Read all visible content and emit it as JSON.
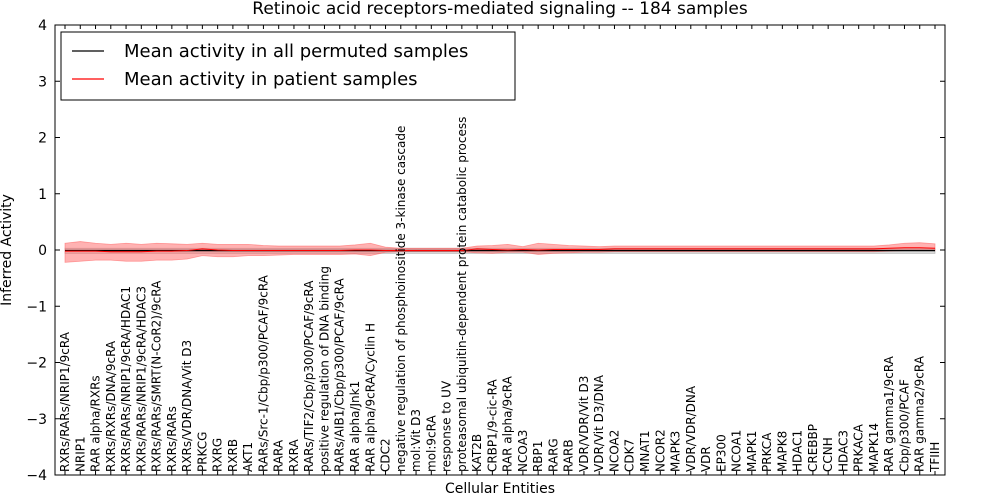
{
  "chart_data": {
    "type": "line",
    "title": "Retinoic acid receptors-mediated signaling -- 184 samples",
    "xlabel": "Cellular Entities",
    "ylabel": "Inferred Activity",
    "ylim": [
      -4,
      4
    ],
    "yticks": [
      -4,
      -3,
      -2,
      -1,
      0,
      1,
      2,
      3,
      4
    ],
    "ytick_labels": [
      "−4",
      "−3",
      "−2",
      "−1",
      "0",
      "1",
      "2",
      "3",
      "4"
    ],
    "grid": false,
    "legend_position": "top-left",
    "categories": [
      "RXRs/RARs/NRIP1/9cRA",
      "NRIP1",
      "RAR alpha/RXRs",
      "RXRs/RXRs/DNA/9cRA",
      "RXRs/RARs/NRIP1/9cRA/HDAC1",
      "RXRs/RARs/NRIP1/9cRA/HDAC3",
      "RXRs/RARs/SMRT(N-CoR2)/9cRA",
      "RXRs/RARs",
      "RXRs/VDR/DNA/Vit D3",
      "PRKCG",
      "RXRG",
      "RXRB",
      "AKT1",
      "RARs/Src-1/Cbp/p300/PCAF/9cRA",
      "RARA",
      "RXRA",
      "RARs/TIF2/Cbp/p300/PCAF/9cRA",
      "positive regulation of DNA binding",
      "RARs/AIB1/Cbp/p300/PCAF/9cRA",
      "RAR alpha/Jnk1",
      "RAR alpha/9cRA/Cyclin H",
      "CDC2",
      "negative regulation of phosphoinositide 3-kinase cascade",
      "mol:Vit D3",
      "mol:9cRA",
      "response to UV",
      "proteasomal ubiquitin-dependent protein catabolic process",
      "KAT2B",
      "CRBP1/9-cic-RA",
      "RAR alpha/9cRA",
      "NCOA3",
      "RBP1",
      "RARG",
      "RARB",
      "VDR/VDR/Vit D3",
      "VDR/Vit D3/DNA",
      "NCOA2",
      "CDK7",
      "MNAT1",
      "NCOR2",
      "MAPK3",
      "VDR/VDR/DNA",
      "VDR",
      "EP300",
      "NCOA1",
      "MAPK1",
      "PRKCA",
      "MAPK8",
      "HDAC1",
      "CREBBP",
      "CCNH",
      "HDAC3",
      "PRKACA",
      "MAPK14",
      "RAR gamma1/9cRA",
      "Cbp/p300/PCAF",
      "RAR gamma2/9cRA",
      "TFIIH"
    ],
    "series": [
      {
        "name": "Mean activity in all permuted samples",
        "color": "#000000",
        "values": [
          -0.01,
          -0.01,
          -0.01,
          -0.01,
          -0.01,
          -0.01,
          -0.01,
          -0.01,
          -0.01,
          -0.01,
          -0.01,
          -0.01,
          -0.01,
          -0.01,
          -0.01,
          -0.01,
          -0.01,
          -0.01,
          -0.01,
          -0.01,
          -0.01,
          -0.01,
          -0.01,
          -0.01,
          -0.01,
          -0.01,
          -0.01,
          -0.01,
          -0.01,
          -0.01,
          -0.01,
          -0.01,
          -0.01,
          -0.01,
          -0.01,
          -0.01,
          -0.01,
          -0.01,
          -0.01,
          -0.01,
          -0.01,
          -0.01,
          -0.01,
          -0.01,
          -0.01,
          -0.01,
          -0.01,
          -0.01,
          -0.01,
          -0.01,
          -0.01,
          -0.01,
          -0.01,
          -0.01,
          -0.01,
          -0.01,
          -0.01,
          -0.01
        ]
      },
      {
        "name": "Mean activity in patient samples",
        "color": "#ff0000",
        "values": [
          -0.02,
          -0.02,
          -0.02,
          -0.03,
          -0.03,
          -0.03,
          -0.02,
          -0.02,
          -0.01,
          0.02,
          0.0,
          -0.01,
          -0.01,
          -0.01,
          -0.01,
          -0.01,
          -0.01,
          -0.01,
          -0.01,
          0.0,
          0.0,
          -0.01,
          -0.01,
          -0.01,
          -0.01,
          -0.01,
          -0.01,
          0.02,
          0.01,
          0.0,
          0.01,
          0.0,
          0.01,
          0.01,
          0.01,
          0.01,
          0.02,
          0.02,
          0.02,
          0.02,
          0.02,
          0.02,
          0.02,
          0.02,
          0.02,
          0.02,
          0.02,
          0.02,
          0.02,
          0.02,
          0.02,
          0.02,
          0.02,
          0.02,
          0.03,
          0.04,
          0.04,
          0.03
        ]
      }
    ],
    "patient_band": {
      "upper": [
        0.12,
        0.15,
        0.12,
        0.1,
        0.12,
        0.1,
        0.12,
        0.11,
        0.1,
        0.12,
        0.1,
        0.1,
        0.1,
        0.08,
        0.07,
        0.07,
        0.07,
        0.07,
        0.07,
        0.09,
        0.12,
        0.05,
        0.03,
        0.03,
        0.03,
        0.03,
        0.03,
        0.07,
        0.08,
        0.1,
        0.06,
        0.12,
        0.1,
        0.08,
        0.07,
        0.06,
        0.07,
        0.07,
        0.07,
        0.07,
        0.07,
        0.07,
        0.07,
        0.07,
        0.07,
        0.07,
        0.07,
        0.07,
        0.07,
        0.07,
        0.07,
        0.07,
        0.07,
        0.07,
        0.09,
        0.12,
        0.13,
        0.11
      ],
      "lower": [
        -0.22,
        -0.2,
        -0.18,
        -0.18,
        -0.2,
        -0.2,
        -0.18,
        -0.18,
        -0.16,
        -0.1,
        -0.12,
        -0.12,
        -0.1,
        -0.1,
        -0.09,
        -0.08,
        -0.08,
        -0.08,
        -0.08,
        -0.07,
        -0.1,
        -0.04,
        -0.03,
        -0.03,
        -0.03,
        -0.03,
        -0.03,
        -0.05,
        -0.06,
        -0.04,
        -0.04,
        -0.08,
        -0.06,
        -0.05,
        -0.04,
        -0.04,
        -0.03,
        -0.03,
        -0.03,
        -0.03,
        -0.03,
        -0.03,
        -0.03,
        -0.03,
        -0.03,
        -0.03,
        -0.03,
        -0.03,
        -0.03,
        -0.03,
        -0.03,
        -0.03,
        -0.03,
        -0.03,
        -0.02,
        -0.01,
        -0.01,
        -0.01
      ],
      "color": "#ff6666"
    },
    "permuted_band": {
      "upper": [
        0.03,
        0.03,
        0.03,
        0.03,
        0.03,
        0.03,
        0.03,
        0.03,
        0.03,
        0.03,
        0.03,
        0.03,
        0.03,
        0.03,
        0.03,
        0.03,
        0.03,
        0.03,
        0.03,
        0.03,
        0.03,
        0.03,
        0.03,
        0.03,
        0.03,
        0.03,
        0.03,
        0.03,
        0.03,
        0.03,
        0.03,
        0.03,
        0.03,
        0.03,
        0.03,
        0.03,
        0.03,
        0.03,
        0.03,
        0.03,
        0.03,
        0.03,
        0.03,
        0.03,
        0.03,
        0.03,
        0.03,
        0.03,
        0.03,
        0.03,
        0.03,
        0.03,
        0.03,
        0.03,
        0.03,
        0.03,
        0.03,
        0.03
      ],
      "lower": [
        -0.06,
        -0.06,
        -0.06,
        -0.06,
        -0.06,
        -0.06,
        -0.06,
        -0.06,
        -0.06,
        -0.06,
        -0.06,
        -0.06,
        -0.06,
        -0.06,
        -0.06,
        -0.06,
        -0.06,
        -0.06,
        -0.06,
        -0.06,
        -0.06,
        -0.06,
        -0.06,
        -0.06,
        -0.06,
        -0.06,
        -0.06,
        -0.06,
        -0.06,
        -0.06,
        -0.06,
        -0.06,
        -0.06,
        -0.06,
        -0.06,
        -0.06,
        -0.06,
        -0.06,
        -0.06,
        -0.06,
        -0.06,
        -0.06,
        -0.06,
        -0.06,
        -0.06,
        -0.06,
        -0.06,
        -0.06,
        -0.06,
        -0.06,
        -0.06,
        -0.06,
        -0.06,
        -0.06,
        -0.06,
        -0.06,
        -0.06,
        -0.06
      ],
      "color": "#999999"
    }
  }
}
